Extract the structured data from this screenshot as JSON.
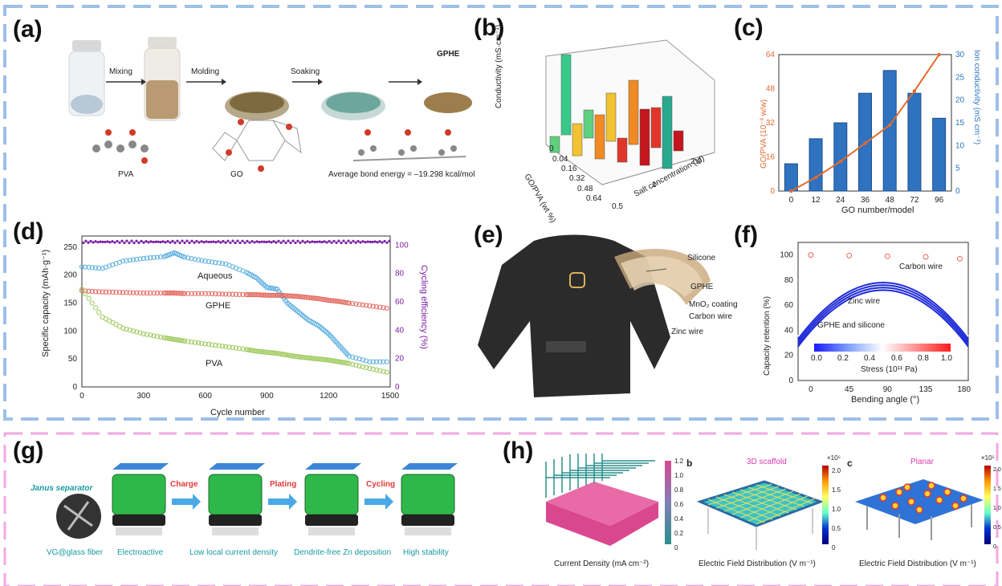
{
  "panels": {
    "a": {
      "label": "(a)",
      "steps": [
        "Mixing",
        "Molding",
        "Soaking"
      ],
      "product": "GPHE",
      "molecules": [
        "PVA",
        "GO"
      ],
      "bond_energy": "Average bond energy = –19.298 kcal/mol"
    },
    "b": {
      "label": "(b)",
      "zlabel": "Conductivity (mS·cm⁻¹)",
      "xlabel": "GO/PVA (wt %)",
      "ylabel": "Salt concentration (M)",
      "x_ticks": [
        "0",
        "0.04",
        "0.16",
        "0.32",
        "0.48",
        "0.64"
      ],
      "y_ticks": [
        "0.5",
        "1",
        "2.0"
      ]
    },
    "c": {
      "label": "(c)",
      "xlabel": "GO number/model",
      "ylabel_left": "GO/PVA (10⁻³ w/w)",
      "ylabel_right": "Ion conductivity (mS cm⁻¹)",
      "left_ticks": [
        "0",
        "16",
        "32",
        "48",
        "64"
      ],
      "right_ticks": [
        "0",
        "5",
        "10",
        "15",
        "20",
        "25",
        "30"
      ]
    },
    "d": {
      "label": "(d)",
      "xlabel": "Cycle number",
      "ylabel_left": "Specific capacity (mAh·g⁻¹)",
      "ylabel_right": "Cycling efficiency (%)",
      "series_labels": [
        "Aqueous",
        "GPHE",
        "PVA"
      ],
      "x_ticks": [
        "0",
        "300",
        "600",
        "900",
        "1200",
        "1500"
      ],
      "left_ticks": [
        "0",
        "50",
        "100",
        "150",
        "200",
        "250"
      ],
      "right_ticks": [
        "0",
        "20",
        "40",
        "60",
        "80",
        "100"
      ]
    },
    "e": {
      "label": "(e)",
      "callouts": [
        "Silicone",
        "GPHE",
        "MnO₂ coating",
        "Carbon wire",
        "Zinc wire"
      ]
    },
    "f": {
      "label": "(f)",
      "xlabel": "Bending angle (°)",
      "ylabel": "Capacity retention (%)",
      "x_ticks": [
        "0",
        "45",
        "90",
        "135",
        "180"
      ],
      "y_ticks": [
        "0",
        "20",
        "40",
        "60",
        "80",
        "100"
      ],
      "annotations": [
        "Carbon wire",
        "Zinc wire",
        "GPHE and silicone"
      ],
      "colorbar_ticks": [
        "0.0",
        "0.2",
        "0.4",
        "0.6",
        "0.8",
        "1.0"
      ],
      "colorbar_label": "Stress (10¹¹ Pa)"
    },
    "g": {
      "label": "(g)",
      "separator": "Janus separator",
      "fiber": "VG@glass fiber",
      "arrows": [
        "Charge",
        "Plating",
        "Cycling"
      ],
      "captions": [
        "Electroactive",
        "Low local current density",
        "Dendrite-free Zn deposition",
        "High stability"
      ]
    },
    "h": {
      "label": "(h)",
      "sublabels": [
        "b",
        "c"
      ],
      "titles": [
        "3D scaffold",
        "Planar"
      ],
      "captions": [
        "Current Density (mA cm⁻²)",
        "Electric Field Distribution (V m⁻¹)",
        "Electric Field Distribution (V m⁻¹)"
      ],
      "colorbar1_ticks": [
        "1.2",
        "1.0",
        "0.8",
        "0.6",
        "0.4",
        "0.2",
        "0"
      ],
      "colorbar2_ticks": [
        "×10⁵",
        "2.0",
        "1.5",
        "1.0",
        "0.5",
        "0"
      ],
      "colorbar3_ticks": [
        "×10⁵",
        "2.0",
        "1.5",
        "1.0",
        "0.5",
        "0"
      ]
    }
  },
  "chart_data": [
    {
      "type": "bar",
      "categories": [
        "0",
        "12",
        "24",
        "36",
        "48",
        "72",
        "96"
      ],
      "series": [
        {
          "values": [
            6,
            11.5,
            15,
            21.5,
            26.5,
            21.5,
            16
          ]
        },
        {
          "values": [
            0,
            3,
            6.5,
            10.5,
            14.5,
            22,
            30
          ]
        }
      ],
      "xlabel": "GO number/model",
      "ylabel": "Ion conductivity (mS cm⁻¹)",
      "ylim": [
        0,
        30
      ]
    },
    {
      "type": "scatter",
      "x": [
        0,
        100,
        200,
        300,
        400,
        450,
        500,
        600,
        700,
        800,
        850,
        900,
        950,
        1000,
        1050,
        1100,
        1150,
        1200,
        1250,
        1300,
        1400,
        1500
      ],
      "series": [
        {
          "name": "Aqueous",
          "values": [
            215,
            212,
            225,
            230,
            233,
            240,
            232,
            225,
            220,
            205,
            195,
            178,
            175,
            150,
            135,
            120,
            110,
            95,
            75,
            55,
            45,
            45
          ]
        },
        {
          "name": "GPHE",
          "values": [
            172,
            170,
            169,
            168,
            168,
            168,
            167,
            167,
            166,
            165,
            165,
            164,
            164,
            163,
            162,
            160,
            158,
            155,
            153,
            150,
            145,
            140
          ]
        },
        {
          "name": "PVA",
          "values": [
            175,
            125,
            105,
            95,
            88,
            85,
            82,
            77,
            72,
            67,
            64,
            62,
            60,
            57,
            54,
            52,
            50,
            48,
            45,
            42,
            33,
            25
          ]
        }
      ],
      "efficiency": 98,
      "xlim": [
        0,
        1500
      ],
      "ylim": [
        0,
        270
      ]
    },
    {
      "type": "line",
      "x": [
        0,
        45,
        90,
        135,
        175
      ],
      "retention_points": [
        100,
        99.5,
        99,
        98.5,
        97
      ],
      "xlim": [
        -15,
        185
      ],
      "ylim": [
        0,
        110
      ]
    }
  ]
}
